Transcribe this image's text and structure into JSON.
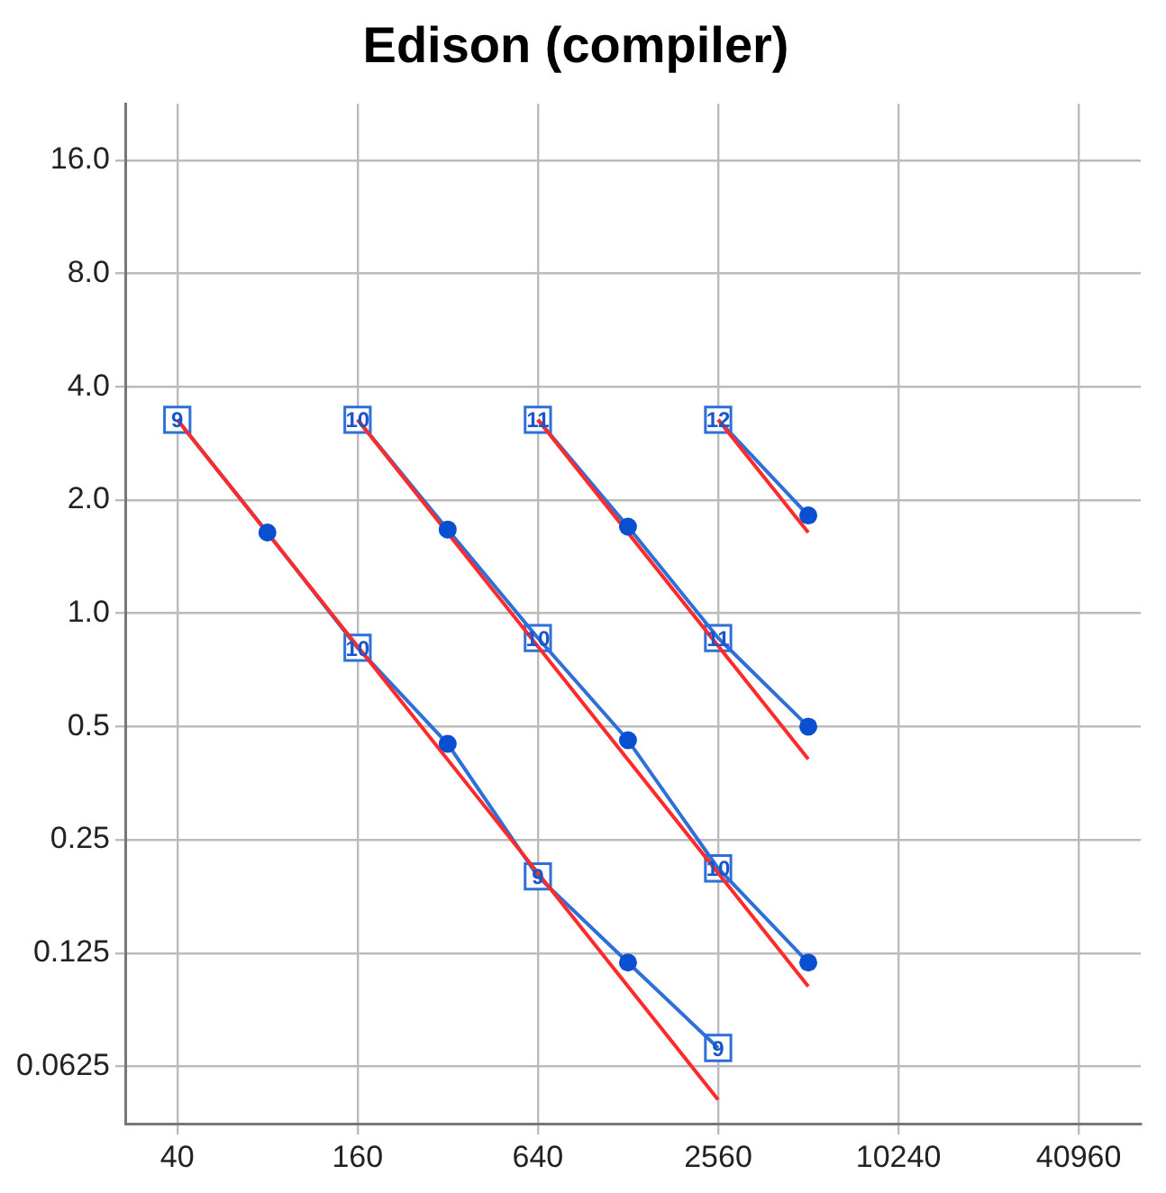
{
  "chart_data": {
    "type": "line",
    "title": "Edison (compiler)",
    "log": "xy",
    "grid": true,
    "legend": false,
    "xlim": [
      27,
      66000
    ],
    "ylim": [
      0.044,
      22.6
    ],
    "xticks": [
      40,
      160,
      640,
      2560,
      10240,
      40960
    ],
    "yticks": [
      {
        "value": 16,
        "label": "16.0"
      },
      {
        "value": 8,
        "label": "8.0"
      },
      {
        "value": 4,
        "label": "4.0"
      },
      {
        "value": 2,
        "label": "2.0"
      },
      {
        "value": 1,
        "label": "1.0"
      },
      0.5,
      0.25,
      0.125,
      0.0625
    ],
    "series": [
      {
        "color": "#ff2a2a",
        "marker": "none",
        "x": [
          40,
          2560
        ],
        "values": [
          3.27,
          0.051
        ]
      },
      {
        "color": "#ff2a2a",
        "marker": "none",
        "x": [
          160,
          5120
        ],
        "values": [
          3.27,
          0.102
        ]
      },
      {
        "color": "#ff2a2a",
        "marker": "none",
        "x": [
          640,
          5120
        ],
        "values": [
          3.27,
          0.41
        ]
      },
      {
        "color": "#ff2a2a",
        "marker": "none",
        "x": [
          2560,
          5120
        ],
        "values": [
          3.27,
          1.64
        ]
      },
      {
        "color": "#2f6fd8",
        "marker": "none",
        "x": [
          40,
          80,
          160,
          320,
          640,
          1280,
          2560
        ],
        "values": [
          3.27,
          1.64,
          0.81,
          0.45,
          0.2,
          0.118,
          0.07
        ]
      },
      {
        "color": "#2f6fd8",
        "marker": "none",
        "x": [
          160,
          320,
          640,
          1280,
          2560,
          5120
        ],
        "values": [
          3.27,
          1.67,
          0.86,
          0.46,
          0.21,
          0.118
        ]
      },
      {
        "color": "#2f6fd8",
        "marker": "none",
        "x": [
          640,
          1280,
          2560,
          5120
        ],
        "values": [
          3.27,
          1.7,
          0.86,
          0.5
        ]
      },
      {
        "color": "#2f6fd8",
        "marker": "none",
        "x": [
          2560,
          5120
        ],
        "values": [
          3.27,
          1.82
        ]
      },
      {
        "type": "scatter",
        "color": "#0a4fcf",
        "marker": "circle",
        "x": [
          80,
          320,
          1280,
          320,
          1280,
          5120,
          1280,
          5120,
          5120
        ],
        "values": [
          1.64,
          0.45,
          0.118,
          1.67,
          0.46,
          0.118,
          1.7,
          0.5,
          1.82
        ]
      },
      {
        "type": "scatter",
        "color": "#2f6fd8",
        "marker": "square",
        "x": [
          40,
          160,
          640,
          2560,
          160,
          640,
          2560,
          640,
          2560,
          2560
        ],
        "values": [
          3.27,
          0.81,
          0.2,
          0.07,
          3.27,
          0.86,
          0.21,
          3.27,
          0.86,
          3.27
        ]
      }
    ],
    "annotations": [
      {
        "text": "9",
        "x": 40,
        "y": 3.27
      },
      {
        "text": "10",
        "x": 160,
        "y": 0.81
      },
      {
        "text": "9",
        "x": 640,
        "y": 0.2
      },
      {
        "text": "9",
        "x": 2560,
        "y": 0.07
      },
      {
        "text": "10",
        "x": 160,
        "y": 3.27
      },
      {
        "text": "10",
        "x": 640,
        "y": 0.86
      },
      {
        "text": "10",
        "x": 2560,
        "y": 0.21
      },
      {
        "text": "11",
        "x": 640,
        "y": 3.27
      },
      {
        "text": "11",
        "x": 2560,
        "y": 0.86
      },
      {
        "text": "12",
        "x": 2560,
        "y": 3.27
      }
    ]
  }
}
